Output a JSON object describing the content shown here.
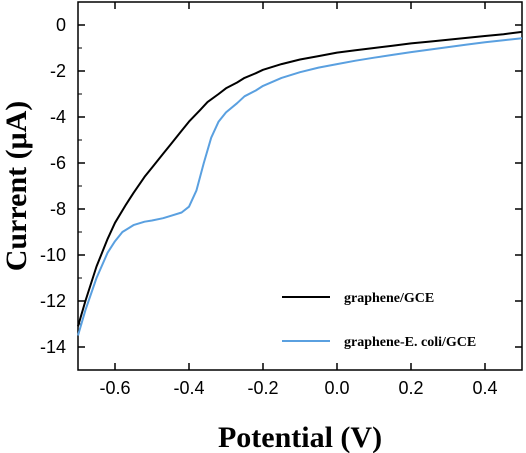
{
  "chart_data": {
    "type": "line",
    "xlabel": "Potential (V)",
    "ylabel": "Current (μA)",
    "xlim": [
      -0.7,
      0.5
    ],
    "ylim": [
      -15,
      1
    ],
    "xticks": [
      -0.6,
      -0.4,
      -0.2,
      0.0,
      0.2,
      0.4
    ],
    "xtick_labels": [
      "-0.6",
      "-0.4",
      "-0.2",
      "0.0",
      "0.2",
      "0.4"
    ],
    "yticks": [
      0,
      -2,
      -4,
      -6,
      -8,
      -10,
      -12,
      -14
    ],
    "ytick_labels": [
      "0",
      "-2",
      "-4",
      "-6",
      "-8",
      "-10",
      "-12",
      "-14"
    ],
    "grid": false,
    "legend_position": "bottom-right",
    "series": [
      {
        "name": "graphene/GCE",
        "color": "#000000",
        "x": [
          -0.7,
          -0.68,
          -0.65,
          -0.62,
          -0.6,
          -0.57,
          -0.55,
          -0.52,
          -0.5,
          -0.47,
          -0.45,
          -0.42,
          -0.4,
          -0.37,
          -0.35,
          -0.32,
          -0.3,
          -0.27,
          -0.25,
          -0.22,
          -0.2,
          -0.15,
          -0.1,
          -0.05,
          0.0,
          0.05,
          0.1,
          0.15,
          0.2,
          0.25,
          0.3,
          0.35,
          0.4,
          0.45,
          0.5
        ],
        "y": [
          -13.1,
          -12.0,
          -10.5,
          -9.3,
          -8.6,
          -7.8,
          -7.3,
          -6.6,
          -6.2,
          -5.6,
          -5.2,
          -4.6,
          -4.2,
          -3.7,
          -3.35,
          -3.0,
          -2.75,
          -2.5,
          -2.3,
          -2.1,
          -1.95,
          -1.7,
          -1.5,
          -1.35,
          -1.2,
          -1.1,
          -1.0,
          -0.9,
          -0.8,
          -0.72,
          -0.64,
          -0.56,
          -0.48,
          -0.4,
          -0.3
        ]
      },
      {
        "name": "graphene-E. coli/GCE",
        "color": "#5aa0e0",
        "x": [
          -0.7,
          -0.68,
          -0.65,
          -0.62,
          -0.6,
          -0.58,
          -0.55,
          -0.52,
          -0.5,
          -0.47,
          -0.45,
          -0.42,
          -0.4,
          -0.38,
          -0.36,
          -0.34,
          -0.32,
          -0.3,
          -0.27,
          -0.25,
          -0.22,
          -0.2,
          -0.15,
          -0.1,
          -0.05,
          0.0,
          0.05,
          0.1,
          0.15,
          0.2,
          0.25,
          0.3,
          0.35,
          0.4,
          0.45,
          0.5
        ],
        "y": [
          -13.5,
          -12.4,
          -11.0,
          -9.9,
          -9.4,
          -9.0,
          -8.7,
          -8.55,
          -8.5,
          -8.4,
          -8.3,
          -8.15,
          -7.9,
          -7.2,
          -6.0,
          -4.9,
          -4.2,
          -3.8,
          -3.4,
          -3.1,
          -2.85,
          -2.65,
          -2.3,
          -2.05,
          -1.85,
          -1.7,
          -1.55,
          -1.42,
          -1.3,
          -1.18,
          -1.07,
          -0.96,
          -0.85,
          -0.75,
          -0.66,
          -0.58
        ]
      }
    ]
  }
}
